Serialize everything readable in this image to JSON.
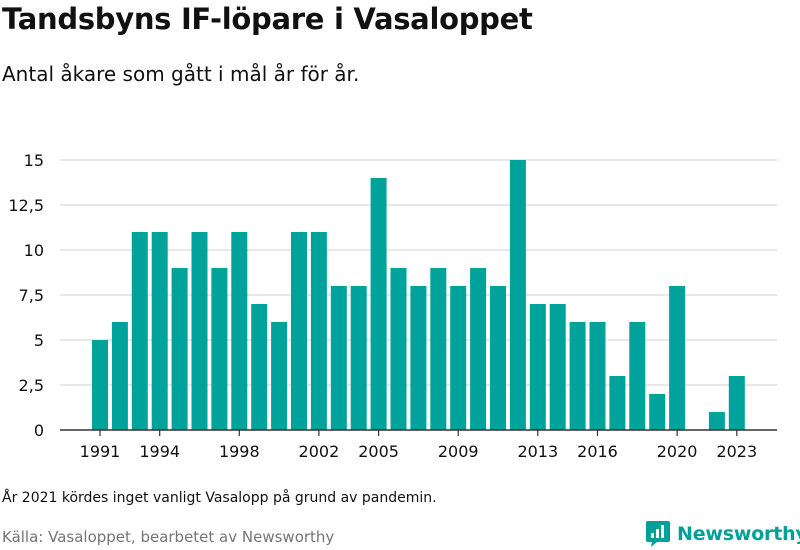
{
  "title": "Tandsbyns IF-löpare i Vasaloppet",
  "subtitle": "Antal åkare som gått i mål år för år.",
  "note": "År 2021 kördes inget vanligt Vasalopp på grund av pandemin.",
  "source": "Källa: Vasaloppet, bearbetet av Newsworthy",
  "logo": {
    "text": "Newsworthy",
    "icon": "newsworthy-logo-icon",
    "color": "#00a09a"
  },
  "colors": {
    "bar": "#00a39b",
    "grid": "#d9d9d9",
    "axis": "#333333",
    "text": "#111111"
  },
  "chart_data": {
    "type": "bar",
    "x": [
      1991,
      1992,
      1993,
      1994,
      1995,
      1996,
      1997,
      1998,
      1999,
      2000,
      2001,
      2002,
      2003,
      2004,
      2005,
      2006,
      2007,
      2008,
      2009,
      2010,
      2011,
      2012,
      2013,
      2014,
      2015,
      2016,
      2017,
      2018,
      2019,
      2020,
      2021,
      2022,
      2023
    ],
    "values": [
      5,
      6,
      11,
      11,
      9,
      11,
      9,
      11,
      7,
      6,
      11,
      11,
      8,
      8,
      14,
      9,
      8,
      9,
      8,
      9,
      8,
      15,
      7,
      7,
      6,
      6,
      3,
      6,
      2,
      8,
      0,
      1,
      3
    ],
    "x_tick_labels": [
      "1991",
      "1994",
      "1998",
      "2002",
      "2005",
      "2009",
      "2013",
      "2016",
      "2020",
      "2023"
    ],
    "y_ticks": [
      0,
      2.5,
      5,
      7.5,
      10,
      12.5,
      15
    ],
    "y_tick_labels": [
      "0",
      "2,5",
      "5",
      "7,5",
      "10",
      "12,5",
      "15"
    ],
    "ylim": [
      0,
      15
    ],
    "grid": true,
    "legend": "none"
  }
}
